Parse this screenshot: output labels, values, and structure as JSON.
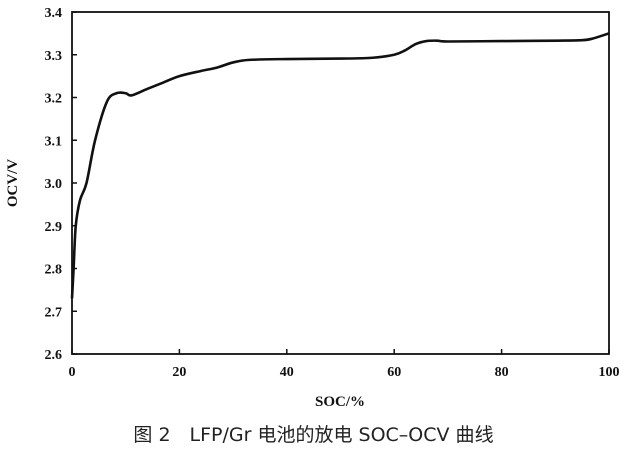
{
  "caption": "图 2　LFP/Gr 电池的放电 SOC–OCV 曲线",
  "chart_data": {
    "type": "line",
    "title": "",
    "xlabel": "SOC/%",
    "ylabel": "OCV/V",
    "xlim": [
      0,
      100
    ],
    "ylim": [
      2.6,
      3.4
    ],
    "xticks": [
      "0",
      "20",
      "40",
      "60",
      "80",
      "100"
    ],
    "yticks": [
      "2.6",
      "2.7",
      "2.8",
      "2.9",
      "3.0",
      "3.1",
      "3.2",
      "3.3",
      "3.4"
    ],
    "grid": false,
    "line_color": "#111111",
    "series": [
      {
        "x": [
          0,
          0.3,
          0.7,
          1.5,
          2.7,
          4.3,
          6.5,
          8.3,
          10,
          11.1,
          14,
          17,
          20,
          24,
          27,
          30,
          33,
          40,
          50,
          56,
          60,
          62,
          64,
          66,
          68,
          70,
          80,
          90,
          95,
          97,
          100
        ],
        "y": [
          2.73,
          2.8,
          2.9,
          2.96,
          3.0,
          3.1,
          3.19,
          3.21,
          3.21,
          3.205,
          3.22,
          3.235,
          3.25,
          3.262,
          3.27,
          3.282,
          3.288,
          3.29,
          3.291,
          3.293,
          3.3,
          3.31,
          3.325,
          3.332,
          3.333,
          3.331,
          3.332,
          3.333,
          3.334,
          3.338,
          3.35
        ]
      }
    ]
  }
}
